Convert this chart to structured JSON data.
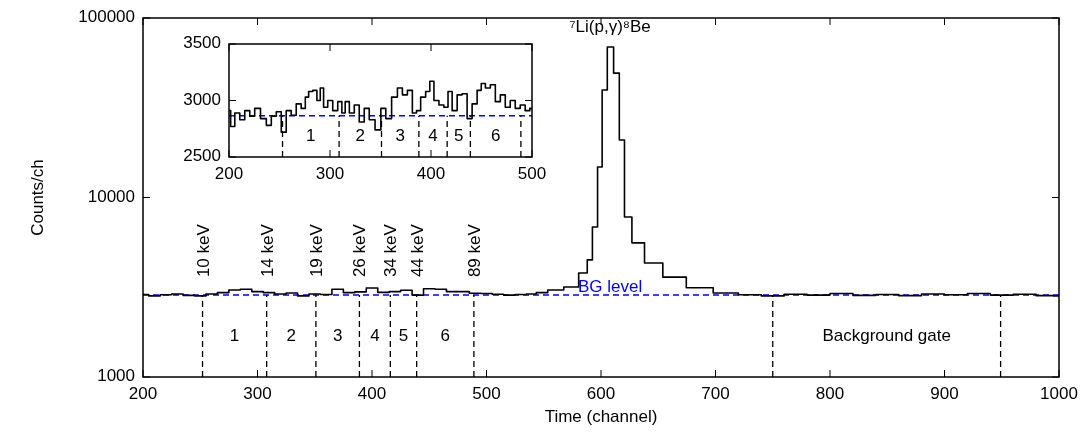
{
  "chart_data": [
    {
      "type": "step",
      "xlabel": "Time (channel)",
      "ylabel": "Counts/ch",
      "log": "y",
      "xlim": [
        200,
        1000
      ],
      "ylim": [
        1000,
        100000
      ],
      "xticks": [
        200,
        300,
        400,
        500,
        600,
        700,
        800,
        900,
        1000
      ],
      "yticks": [
        1000,
        10000,
        100000
      ],
      "series": [
        {
          "color": "#000000",
          "x": [
            200,
            210,
            220,
            230,
            240,
            250,
            260,
            270,
            280,
            290,
            300,
            310,
            320,
            330,
            340,
            350,
            360,
            370,
            380,
            390,
            400,
            410,
            420,
            430,
            440,
            450,
            460,
            470,
            480,
            490,
            500,
            510,
            520,
            530,
            540,
            547,
            560,
            575,
            586,
            590,
            595,
            599,
            603,
            608,
            614,
            618,
            623,
            631,
            645,
            663,
            686,
            710,
            730,
            750,
            770,
            790,
            810,
            830,
            850,
            870,
            890,
            910,
            930,
            950,
            970,
            990,
            1000
          ],
          "values": [
            2880,
            2830,
            2870,
            2900,
            2850,
            2830,
            2900,
            2950,
            3050,
            3080,
            2990,
            2950,
            2900,
            2940,
            2830,
            2900,
            2880,
            3080,
            2950,
            2980,
            3130,
            2960,
            2990,
            3040,
            2860,
            3100,
            3080,
            2990,
            2990,
            2930,
            2920,
            2890,
            2860,
            2880,
            2900,
            2950,
            3050,
            3170,
            3800,
            4490,
            6850,
            14800,
            39700,
            68900,
            49300,
            20900,
            7790,
            5590,
            4320,
            3600,
            3140,
            2940,
            2870,
            2830,
            2890,
            2860,
            2920,
            2850,
            2880,
            2840,
            2900,
            2870,
            2920,
            2860,
            2890,
            2840,
            2830
          ]
        }
      ],
      "ref_lines": [
        {
          "axis": "y",
          "value": 2860,
          "label": "BG level",
          "color": "#0000ff",
          "line_style": "dashed"
        },
        {
          "axis": "x",
          "value": 252,
          "label": "10 keV",
          "color": "#000000",
          "line_style": "dashed"
        },
        {
          "axis": "x",
          "value": 308,
          "label": "14 keV",
          "color": "#000000",
          "line_style": "dashed"
        },
        {
          "axis": "x",
          "value": 351,
          "label": "19 keV",
          "color": "#000000",
          "line_style": "dashed"
        },
        {
          "axis": "x",
          "value": 389,
          "label": "26 keV",
          "color": "#000000",
          "line_style": "dashed"
        },
        {
          "axis": "x",
          "value": 416,
          "label": "34 keV",
          "color": "#000000",
          "line_style": "dashed"
        },
        {
          "axis": "x",
          "value": 439,
          "label": "44 keV",
          "color": "#000000",
          "line_style": "dashed"
        },
        {
          "axis": "x",
          "value": 489,
          "label": "89 keV",
          "color": "#000000",
          "line_style": "dashed"
        },
        {
          "axis": "x",
          "value": 750,
          "color": "#000000",
          "line_style": "dashed"
        },
        {
          "axis": "x",
          "value": 949,
          "color": "#000000",
          "line_style": "dashed"
        }
      ],
      "title": "⁷Li(p,γ)⁸Be",
      "annotations": [
        "1",
        "2",
        "3",
        "4",
        "5",
        "6",
        "Background gate"
      ]
    },
    {
      "type": "step",
      "xlim": [
        200,
        500
      ],
      "ylim": [
        2500,
        3500
      ],
      "xticks": [
        200,
        300,
        400,
        500
      ],
      "yticks": [
        2500,
        3000,
        3500
      ],
      "series": [
        {
          "color": "#000000",
          "x": [
            200,
            203.3,
            208.2,
            213.1,
            218.1,
            223,
            227.9,
            234.5,
            239.4,
            244.4,
            249.3,
            254.2,
            259.1,
            264.1,
            269,
            273.9,
            277.2,
            280.5,
            285.4,
            288.7,
            292,
            295.3,
            300.2,
            305.2,
            310.1,
            313.4,
            316.7,
            321.6,
            326.5,
            331.4,
            336.4,
            341.3,
            347.9,
            352.8,
            357.7,
            364.3,
            369.2,
            374.2,
            379.1,
            384,
            387.3,
            392.2,
            397.2,
            400.4,
            405.4,
            410.3,
            415.2,
            418.5,
            423.4,
            428.4,
            433.3,
            438.2,
            443.2,
            448.1,
            451.4,
            456.3,
            461.2,
            466.2,
            471.1,
            476,
            480.9,
            485.9,
            490.8,
            495.7,
            500
          ],
          "values": [
            2910,
            2770,
            2890,
            2830,
            2910,
            2860,
            2930,
            2840,
            2780,
            2860,
            2900,
            2720,
            2910,
            2870,
            2970,
            2930,
            3030,
            3080,
            3090,
            3000,
            3110,
            2940,
            3000,
            2910,
            2990,
            2890,
            2990,
            2890,
            2960,
            2810,
            2930,
            2830,
            2740,
            2930,
            2840,
            3030,
            3110,
            3050,
            3090,
            2890,
            2910,
            3030,
            3080,
            3170,
            3000,
            2960,
            2940,
            3080,
            2910,
            3050,
            3060,
            2840,
            2970,
            3090,
            3150,
            3110,
            3140,
            2990,
            3050,
            2940,
            3000,
            2930,
            2960,
            2910,
            2930
          ]
        }
      ],
      "ref_lines": [
        {
          "axis": "y",
          "value": 2865,
          "color": "#0000ff",
          "line_style": "dashed"
        },
        {
          "axis": "x",
          "value": 253,
          "color": "#000000",
          "line_style": "dashed"
        },
        {
          "axis": "x",
          "value": 309,
          "color": "#000000",
          "line_style": "dashed"
        },
        {
          "axis": "x",
          "value": 351,
          "color": "#000000",
          "line_style": "dashed"
        },
        {
          "axis": "x",
          "value": 388,
          "color": "#000000",
          "line_style": "dashed"
        },
        {
          "axis": "x",
          "value": 416,
          "color": "#000000",
          "line_style": "dashed"
        },
        {
          "axis": "x",
          "value": 439,
          "color": "#000000",
          "line_style": "dashed"
        },
        {
          "axis": "x",
          "value": 489,
          "color": "#000000",
          "line_style": "dashed"
        }
      ],
      "annotations": [
        "1",
        "2",
        "3",
        "4",
        "5",
        "6"
      ]
    }
  ]
}
